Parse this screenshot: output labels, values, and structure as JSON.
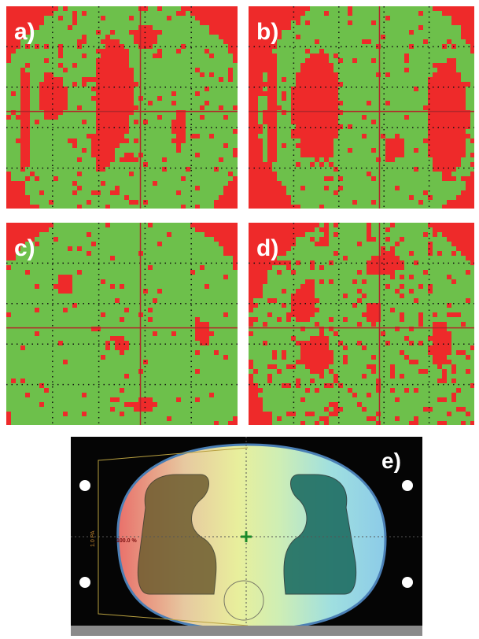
{
  "panels": [
    {
      "label": "a)"
    },
    {
      "label": "b)"
    },
    {
      "label": "c)"
    },
    {
      "label": "d)"
    }
  ],
  "image": {
    "label": "e)",
    "dose_label": "100.0 %",
    "side_label": "1.0 PA"
  }
}
